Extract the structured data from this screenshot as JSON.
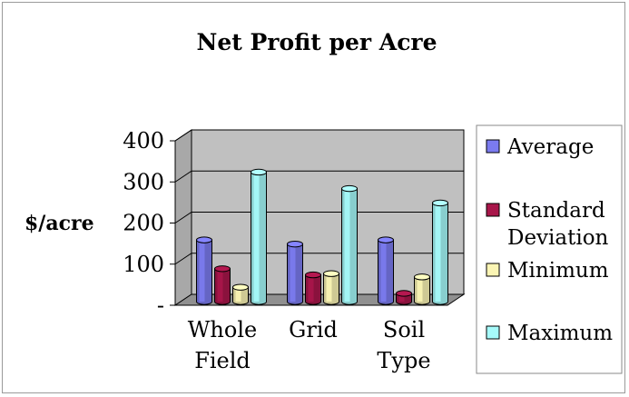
{
  "chart_data": {
    "type": "bar",
    "title": "Net Profit per Acre",
    "ylabel": "$/acre",
    "xlabel": "",
    "categories": [
      [
        "Whole",
        "Field"
      ],
      [
        "Grid"
      ],
      [
        "Soil",
        "Type"
      ]
    ],
    "ylim": [
      0,
      400
    ],
    "yticks": [
      {
        "value": 0,
        "label": "-"
      },
      {
        "value": 100,
        "label": "100"
      },
      {
        "value": 200,
        "label": "200"
      },
      {
        "value": 300,
        "label": "300"
      },
      {
        "value": 400,
        "label": "400"
      }
    ],
    "series": [
      {
        "name": "Average",
        "values": [
          150,
          140,
          150
        ],
        "color": "#7b7bef"
      },
      {
        "name": "Standard Deviation",
        "values": [
          80,
          65,
          20
        ],
        "color": "#a8164a"
      },
      {
        "name": "Minimum",
        "values": [
          35,
          68,
          60
        ],
        "color": "#fbf5b4"
      },
      {
        "name": "Maximum",
        "values": [
          315,
          275,
          240
        ],
        "color": "#a6fbfb"
      }
    ],
    "grid": true,
    "legend_position": "right",
    "wall_color": "#c0c0c0"
  }
}
